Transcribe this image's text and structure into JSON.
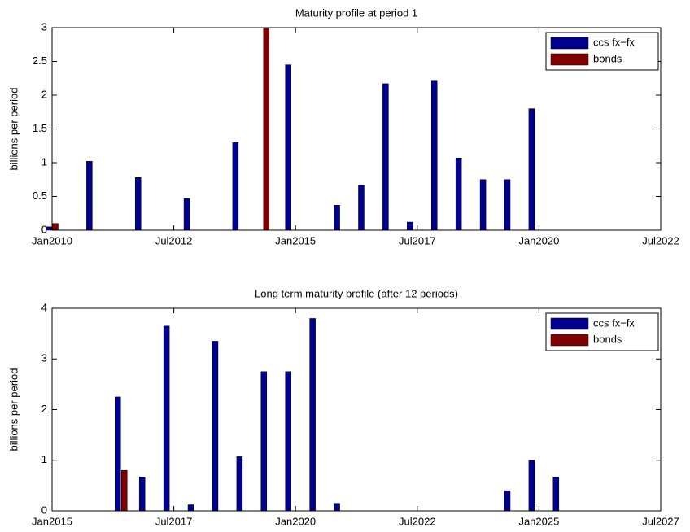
{
  "chart_data": [
    {
      "type": "bar",
      "title": "Maturity profile at period 1",
      "y_label": "billions per period",
      "x": [
        "2010-01",
        "2010-11",
        "2011-11",
        "2012-11",
        "2013-11",
        "2014-05",
        "2014-12",
        "2015-12",
        "2016-06",
        "2016-12",
        "2017-06",
        "2017-12",
        "2018-06",
        "2018-12",
        "2019-06",
        "2019-12"
      ],
      "series": [
        {
          "name": "ccs fx−fx",
          "color": "#00008f",
          "values": [
            0.05,
            1.02,
            0.78,
            0.47,
            1.3,
            0,
            2.45,
            0.37,
            0.67,
            2.17,
            0.12,
            2.22,
            1.07,
            0.75,
            0.75,
            1.8
          ]
        },
        {
          "name": "bonds",
          "color": "#800000",
          "values": [
            0.1,
            0,
            0,
            0,
            0,
            3.0,
            0,
            0,
            0,
            0,
            0,
            0,
            0,
            0,
            0,
            0
          ]
        }
      ],
      "xlim": [
        "2010-01",
        "2022-07"
      ],
      "xticks": [
        {
          "value": "2010-01",
          "label": "Jan2010"
        },
        {
          "value": "2012-07",
          "label": "Jul2012"
        },
        {
          "value": "2015-01",
          "label": "Jan2015"
        },
        {
          "value": "2017-07",
          "label": "Jul2017"
        },
        {
          "value": "2020-01",
          "label": "Jan2020"
        },
        {
          "value": "2022-07",
          "label": "Jul2022"
        }
      ],
      "ylim": [
        0,
        3
      ],
      "yticks": [
        0,
        0.5,
        1,
        1.5,
        2,
        2.5,
        3
      ],
      "grid": false,
      "legend": "northeast"
    },
    {
      "type": "bar",
      "title": "Long term maturity profile (after 12 periods)",
      "y_label": "billions per period",
      "x": [
        "2016-06",
        "2016-12",
        "2017-06",
        "2017-12",
        "2018-06",
        "2018-12",
        "2019-06",
        "2019-12",
        "2020-06",
        "2020-12",
        "2024-06",
        "2024-12",
        "2025-06"
      ],
      "series": [
        {
          "name": "ccs fx−fx",
          "color": "#00008f",
          "values": [
            2.25,
            0.67,
            3.65,
            0.12,
            3.35,
            1.07,
            2.75,
            2.75,
            3.8,
            0.15,
            0.4,
            1.0,
            0.67
          ]
        },
        {
          "name": "bonds",
          "color": "#800000",
          "values": [
            0.8,
            0,
            0,
            0,
            0,
            0,
            0,
            0,
            0,
            0,
            0,
            0,
            0
          ]
        }
      ],
      "xlim": [
        "2015-01",
        "2027-07"
      ],
      "xticks": [
        {
          "value": "2015-01",
          "label": "Jan2015"
        },
        {
          "value": "2017-07",
          "label": "Jul2017"
        },
        {
          "value": "2020-01",
          "label": "Jan2020"
        },
        {
          "value": "2022-07",
          "label": "Jul2022"
        },
        {
          "value": "2025-01",
          "label": "Jan2025"
        },
        {
          "value": "2027-07",
          "label": "Jul2027"
        }
      ],
      "ylim": [
        0,
        4
      ],
      "yticks": [
        0,
        1,
        2,
        3,
        4
      ],
      "grid": false,
      "legend": "northeast"
    }
  ]
}
